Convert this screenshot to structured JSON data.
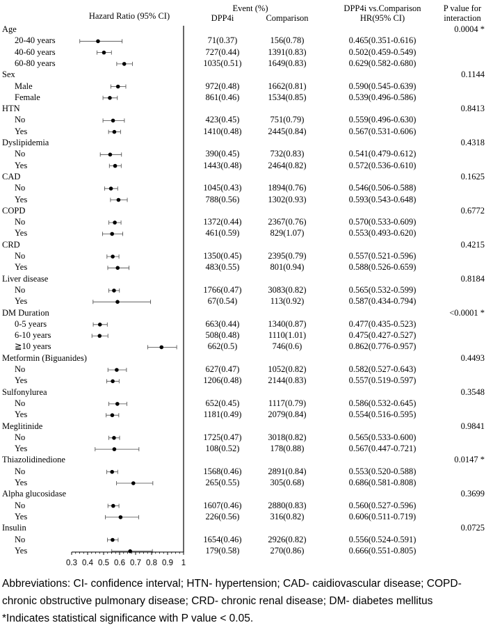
{
  "headers": {
    "hazard_ratio": "Hazard Ratio (95% CI)",
    "event": "Event (%)",
    "dpp4i": "DPP4i",
    "comparison": "Comparison",
    "hr_title_1": "DPP4i vs.Comparison",
    "hr_title_2": "HR(95% CI)",
    "pval_1": "P value for",
    "pval_2": "interaction"
  },
  "chart_data": {
    "type": "forest",
    "xlim": [
      0.3,
      1
    ],
    "xticks": [
      "0.3",
      "0.4",
      "0.5",
      "0.6",
      "0.7",
      "0.8",
      "0.9",
      "1"
    ],
    "reference_line": 1,
    "groups": [
      {
        "name": "Age",
        "p": "0.0004 *",
        "rows": [
          {
            "label": "20-40 years",
            "dpp4i": "71(0.37)",
            "comp": "156(0.78)",
            "hr_text": "0.465(0.351-0.616)",
            "hr": 0.465,
            "lo": 0.351,
            "hi": 0.616
          },
          {
            "label": "40-60 years",
            "dpp4i": "727(0.44)",
            "comp": "1391(0.83)",
            "hr_text": "0.502(0.459-0.549)",
            "hr": 0.502,
            "lo": 0.459,
            "hi": 0.549
          },
          {
            "label": "60-80 years",
            "dpp4i": "1035(0.51)",
            "comp": "1649(0.83)",
            "hr_text": "0.629(0.582-0.680)",
            "hr": 0.629,
            "lo": 0.582,
            "hi": 0.68
          }
        ]
      },
      {
        "name": "Sex",
        "p": "0.1144",
        "rows": [
          {
            "label": "Male",
            "dpp4i": "972(0.48)",
            "comp": "1662(0.81)",
            "hr_text": "0.590(0.545-0.639)",
            "hr": 0.59,
            "lo": 0.545,
            "hi": 0.639
          },
          {
            "label": "Female",
            "dpp4i": "861(0.46)",
            "comp": "1534(0.85)",
            "hr_text": "0.539(0.496-0.586)",
            "hr": 0.539,
            "lo": 0.496,
            "hi": 0.586
          }
        ]
      },
      {
        "name": "HTN",
        "p": "0.8413",
        "rows": [
          {
            "label": "No",
            "dpp4i": "423(0.45)",
            "comp": "751(0.79)",
            "hr_text": "0.559(0.496-0.630)",
            "hr": 0.559,
            "lo": 0.496,
            "hi": 0.63
          },
          {
            "label": "Yes",
            "dpp4i": "1410(0.48)",
            "comp": "2445(0.84)",
            "hr_text": "0.567(0.531-0.606)",
            "hr": 0.567,
            "lo": 0.531,
            "hi": 0.606
          }
        ]
      },
      {
        "name": "Dyslipidemia",
        "p": "0.4318",
        "rows": [
          {
            "label": "No",
            "dpp4i": "390(0.45)",
            "comp": "732(0.83)",
            "hr_text": "0.541(0.479-0.612)",
            "hr": 0.541,
            "lo": 0.479,
            "hi": 0.612
          },
          {
            "label": "Yes",
            "dpp4i": "1443(0.48)",
            "comp": "2464(0.82)",
            "hr_text": "0.572(0.536-0.610)",
            "hr": 0.572,
            "lo": 0.536,
            "hi": 0.61
          }
        ]
      },
      {
        "name": "CAD",
        "p": "0.1625",
        "rows": [
          {
            "label": "No",
            "dpp4i": "1045(0.43)",
            "comp": "1894(0.76)",
            "hr_text": "0.546(0.506-0.588)",
            "hr": 0.546,
            "lo": 0.506,
            "hi": 0.588
          },
          {
            "label": "Yes",
            "dpp4i": "788(0.56)",
            "comp": "1302(0.93)",
            "hr_text": "0.593(0.543-0.648)",
            "hr": 0.593,
            "lo": 0.543,
            "hi": 0.648
          }
        ]
      },
      {
        "name": "COPD",
        "p": "0.6772",
        "rows": [
          {
            "label": "No",
            "dpp4i": "1372(0.44)",
            "comp": "2367(0.76)",
            "hr_text": "0.570(0.533-0.609)",
            "hr": 0.57,
            "lo": 0.533,
            "hi": 0.609
          },
          {
            "label": "Yes",
            "dpp4i": "461(0.59)",
            "comp": "829(1.07)",
            "hr_text": "0.553(0.493-0.620)",
            "hr": 0.553,
            "lo": 0.493,
            "hi": 0.62
          }
        ]
      },
      {
        "name": "CRD",
        "p": "0.4215",
        "rows": [
          {
            "label": "No",
            "dpp4i": "1350(0.45)",
            "comp": "2395(0.79)",
            "hr_text": "0.557(0.521-0.596)",
            "hr": 0.557,
            "lo": 0.521,
            "hi": 0.596
          },
          {
            "label": "Yes",
            "dpp4i": "483(0.55)",
            "comp": "801(0.94)",
            "hr_text": "0.588(0.526-0.659)",
            "hr": 0.588,
            "lo": 0.526,
            "hi": 0.659
          }
        ]
      },
      {
        "name": "Liver disease",
        "p": "0.8184",
        "rows": [
          {
            "label": "No",
            "dpp4i": "1766(0.47)",
            "comp": "3083(0.82)",
            "hr_text": "0.565(0.532-0.599)",
            "hr": 0.565,
            "lo": 0.532,
            "hi": 0.599
          },
          {
            "label": "Yes",
            "dpp4i": "67(0.54)",
            "comp": "113(0.92)",
            "hr_text": "0.587(0.434-0.794)",
            "hr": 0.587,
            "lo": 0.434,
            "hi": 0.794
          }
        ]
      },
      {
        "name": "DM Duration",
        "p": "<0.0001 *",
        "rows": [
          {
            "label": "0-5 years",
            "dpp4i": "663(0.44)",
            "comp": "1340(0.87)",
            "hr_text": "0.477(0.435-0.523)",
            "hr": 0.477,
            "lo": 0.435,
            "hi": 0.523
          },
          {
            "label": "6-10 years",
            "dpp4i": "508(0.48)",
            "comp": "1110(1.01)",
            "hr_text": "0.475(0.427-0.527)",
            "hr": 0.475,
            "lo": 0.427,
            "hi": 0.527
          },
          {
            "label": "≧10 years",
            "dpp4i": "662(0.5)",
            "comp": "746(0.6)",
            "hr_text": "0.862(0.776-0.957)",
            "hr": 0.862,
            "lo": 0.776,
            "hi": 0.957
          }
        ]
      },
      {
        "name": "Metformin (Biguanides)",
        "p": "0.4493",
        "rows": [
          {
            "label": "No",
            "dpp4i": "627(0.47)",
            "comp": "1052(0.82)",
            "hr_text": "0.582(0.527-0.643)",
            "hr": 0.582,
            "lo": 0.527,
            "hi": 0.643
          },
          {
            "label": "Yes",
            "dpp4i": "1206(0.48)",
            "comp": "2144(0.83)",
            "hr_text": "0.557(0.519-0.597)",
            "hr": 0.557,
            "lo": 0.519,
            "hi": 0.597
          }
        ]
      },
      {
        "name": "Sulfonylurea",
        "p": "0.3548",
        "rows": [
          {
            "label": "No",
            "dpp4i": "652(0.45)",
            "comp": "1117(0.79)",
            "hr_text": "0.586(0.532-0.645)",
            "hr": 0.586,
            "lo": 0.532,
            "hi": 0.645
          },
          {
            "label": "Yes",
            "dpp4i": "1181(0.49)",
            "comp": "2079(0.84)",
            "hr_text": "0.554(0.516-0.595)",
            "hr": 0.554,
            "lo": 0.516,
            "hi": 0.595
          }
        ]
      },
      {
        "name": "Meglitinide",
        "p": "0.9841",
        "rows": [
          {
            "label": "No",
            "dpp4i": "1725(0.47)",
            "comp": "3018(0.82)",
            "hr_text": "0.565(0.533-0.600)",
            "hr": 0.565,
            "lo": 0.533,
            "hi": 0.6
          },
          {
            "label": "Yes",
            "dpp4i": "108(0.52)",
            "comp": "178(0.88)",
            "hr_text": "0.567(0.447-0.721)",
            "hr": 0.567,
            "lo": 0.447,
            "hi": 0.721
          }
        ]
      },
      {
        "name": "Thiazolidinedione",
        "p": "0.0147 *",
        "rows": [
          {
            "label": "No",
            "dpp4i": "1568(0.46)",
            "comp": "2891(0.84)",
            "hr_text": "0.553(0.520-0.588)",
            "hr": 0.553,
            "lo": 0.52,
            "hi": 0.588
          },
          {
            "label": "Yes",
            "dpp4i": "265(0.55)",
            "comp": "305(0.68)",
            "hr_text": "0.686(0.581-0.808)",
            "hr": 0.686,
            "lo": 0.581,
            "hi": 0.808
          }
        ]
      },
      {
        "name": "Alpha glucosidase",
        "p": "0.3699",
        "rows": [
          {
            "label": "No",
            "dpp4i": "1607(0.46)",
            "comp": "2880(0.83)",
            "hr_text": "0.560(0.527-0.596)",
            "hr": 0.56,
            "lo": 0.527,
            "hi": 0.596
          },
          {
            "label": "Yes",
            "dpp4i": "226(0.56)",
            "comp": "316(0.82)",
            "hr_text": "0.606(0.511-0.719)",
            "hr": 0.606,
            "lo": 0.511,
            "hi": 0.719
          }
        ]
      },
      {
        "name": "Insulin",
        "p": "0.0725",
        "rows": [
          {
            "label": "No",
            "dpp4i": "1654(0.46)",
            "comp": "2926(0.82)",
            "hr_text": "0.556(0.524-0.591)",
            "hr": 0.556,
            "lo": 0.524,
            "hi": 0.591
          },
          {
            "label": "Yes",
            "dpp4i": "179(0.58)",
            "comp": "270(0.86)",
            "hr_text": "0.666(0.551-0.805)",
            "hr": 0.666,
            "lo": 0.551,
            "hi": 0.805
          }
        ]
      }
    ]
  },
  "footnotes": {
    "line1": "Abbreviations: CI- confidence interval; HTN- hypertension; CAD- caidiovascular disease; COPD-",
    "line2": "chronic obstructive pulmonary disease; CRD- chronic renal disease; DM- diabetes mellitus",
    "line3": "*Indicates statistical significance with P value < 0.05."
  }
}
